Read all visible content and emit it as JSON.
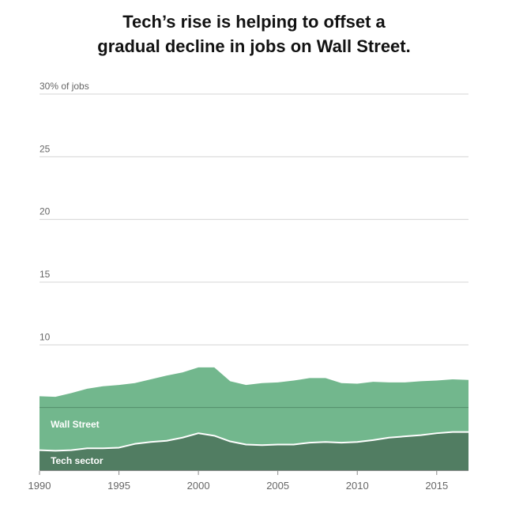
{
  "title_lines": [
    "Tech’s rise is helping to offset a",
    "gradual decline in jobs on Wall Street."
  ],
  "colors": {
    "wall_street": "#72b78d",
    "tech_sector": "#517d62",
    "gridline": "#d5d5d5",
    "gridline_inside": "#4f8a66",
    "stack_separator": "#ffffff",
    "baseline": "#8a8a8a",
    "tick_text": "#666666",
    "series_label_text": "#ffffff"
  },
  "chart_data": {
    "type": "area",
    "stacked": true,
    "title": "Tech’s rise is helping to offset a gradual decline in jobs on Wall Street.",
    "xlabel": "",
    "ylabel": "",
    "x": [
      1990,
      1991,
      1992,
      1993,
      1994,
      1995,
      1996,
      1997,
      1998,
      1999,
      2000,
      2001,
      2002,
      2003,
      2004,
      2005,
      2006,
      2007,
      2008,
      2009,
      2010,
      2011,
      2012,
      2013,
      2014,
      2015,
      2016,
      2017
    ],
    "xlim": [
      1990,
      2017
    ],
    "ylim": [
      0,
      30
    ],
    "x_ticks": [
      1990,
      1995,
      2000,
      2005,
      2010,
      2015
    ],
    "x_tick_labels": [
      "1990",
      "1995",
      "2000",
      "2005",
      "2010",
      "2015"
    ],
    "y_ticks": [
      5,
      10,
      15,
      20,
      25,
      30
    ],
    "y_tick_labels": [
      {
        "value": 10,
        "label": "10"
      },
      {
        "value": 15,
        "label": "15"
      },
      {
        "value": 20,
        "label": "20"
      },
      {
        "value": 25,
        "label": "25"
      },
      {
        "value": 30,
        "label": "30% of jobs"
      }
    ],
    "grid": true,
    "series": [
      {
        "name": "Tech sector",
        "label_x": 1990.7,
        "label_y": 0.5,
        "values": [
          1.6,
          1.55,
          1.6,
          1.75,
          1.75,
          1.8,
          2.1,
          2.25,
          2.35,
          2.6,
          2.95,
          2.75,
          2.3,
          2.05,
          2.0,
          2.05,
          2.05,
          2.2,
          2.25,
          2.2,
          2.25,
          2.4,
          2.6,
          2.7,
          2.8,
          2.95,
          3.05,
          3.05
        ]
      },
      {
        "name": "Wall Street",
        "label_x": 1990.7,
        "label_y": 3.4,
        "values": [
          4.3,
          4.3,
          4.55,
          4.75,
          4.95,
          5.0,
          4.85,
          5.0,
          5.2,
          5.2,
          5.25,
          5.45,
          4.8,
          4.75,
          4.95,
          4.95,
          5.1,
          5.15,
          5.1,
          4.75,
          4.65,
          4.65,
          4.4,
          4.3,
          4.3,
          4.2,
          4.2,
          4.15
        ]
      }
    ]
  }
}
